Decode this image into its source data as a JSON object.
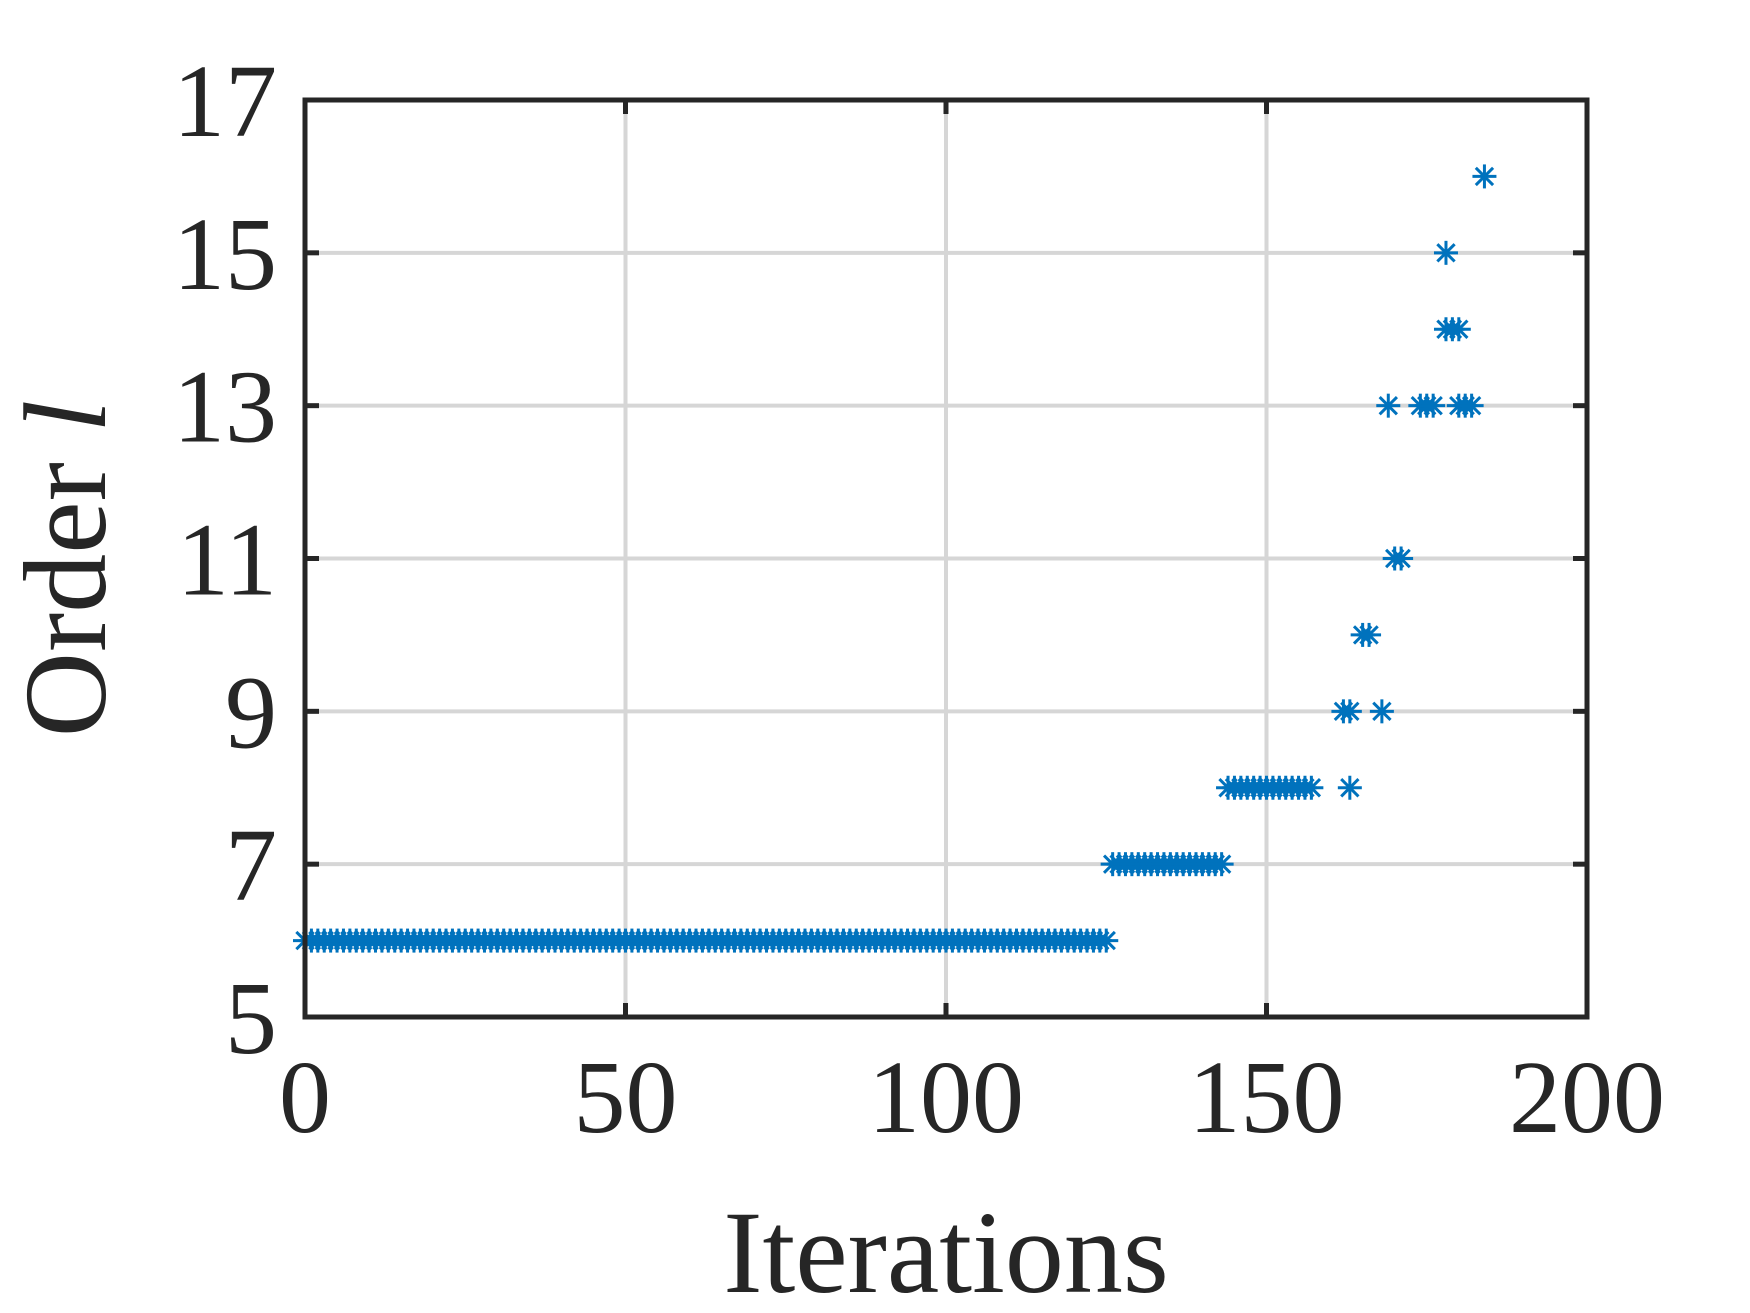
{
  "chart_data": {
    "type": "scatter",
    "title": "",
    "xlabel": "Iterations",
    "ylabel_text": "Order ",
    "ylabel_symbol": "l",
    "xlim": [
      0,
      200
    ],
    "ylim": [
      5,
      17
    ],
    "xticks": [
      0,
      50,
      100,
      150,
      200
    ],
    "yticks": [
      5,
      7,
      9,
      11,
      13,
      15,
      17
    ],
    "xtick_labels": [
      "0",
      "50",
      "100",
      "150",
      "200"
    ],
    "ytick_labels": [
      "5",
      "7",
      "9",
      "11",
      "13",
      "15",
      "17"
    ],
    "grid": true,
    "marker": "asterisk",
    "marker_color": "#0072BD",
    "segments": [
      {
        "x_start": 0,
        "x_end": 125,
        "y": 6
      },
      {
        "x_start": 126,
        "x_end": 143,
        "y": 7
      },
      {
        "x_start": 144,
        "x_end": 157,
        "y": 8
      }
    ],
    "points": [
      {
        "x": 163,
        "y": 8
      },
      {
        "x": 162,
        "y": 9
      },
      {
        "x": 163,
        "y": 9
      },
      {
        "x": 168,
        "y": 9
      },
      {
        "x": 165,
        "y": 10
      },
      {
        "x": 166,
        "y": 10
      },
      {
        "x": 170,
        "y": 11
      },
      {
        "x": 171,
        "y": 11
      },
      {
        "x": 169,
        "y": 13
      },
      {
        "x": 174,
        "y": 13
      },
      {
        "x": 175,
        "y": 13
      },
      {
        "x": 176,
        "y": 13
      },
      {
        "x": 180,
        "y": 13
      },
      {
        "x": 181,
        "y": 13
      },
      {
        "x": 182,
        "y": 13
      },
      {
        "x": 178,
        "y": 14
      },
      {
        "x": 179,
        "y": 14
      },
      {
        "x": 180,
        "y": 14
      },
      {
        "x": 178,
        "y": 15
      },
      {
        "x": 184,
        "y": 16
      }
    ]
  }
}
